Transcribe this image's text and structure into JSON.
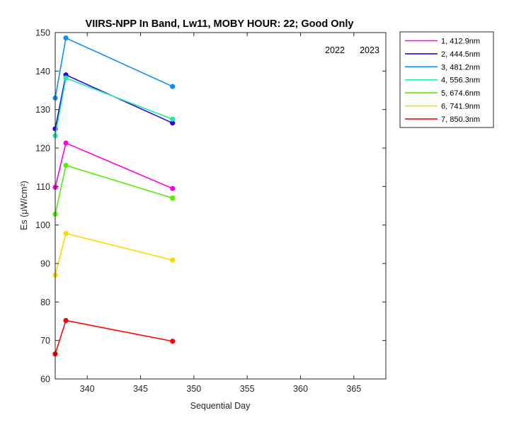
{
  "chart_data": {
    "type": "line",
    "title": "VIIRS-NPP In Band,  Lw11, MOBY HOUR: 22;  Good Only",
    "xlabel": "Sequential Day",
    "ylabel": "Es (μW/cm²)",
    "xlim": [
      337,
      368
    ],
    "ylim": [
      60,
      150
    ],
    "xticks": [
      340,
      345,
      350,
      355,
      360,
      365
    ],
    "yticks": [
      60,
      70,
      80,
      90,
      100,
      110,
      120,
      130,
      140,
      150
    ],
    "grid": false,
    "legend_placement": "outside-top-right",
    "annotations": [
      "2022",
      "2023"
    ],
    "x": [
      337,
      338,
      348
    ],
    "series": [
      {
        "name": "1, 412.9nm",
        "color": "#ff00e6",
        "values": [
          109.8,
          121.3,
          109.5
        ]
      },
      {
        "name": "2, 444.5nm",
        "color": "#3300dd",
        "values": [
          125.0,
          139.0,
          126.5
        ]
      },
      {
        "name": "3, 481.2nm",
        "color": "#0d8ff2",
        "values": [
          133.0,
          148.6,
          136.0
        ]
      },
      {
        "name": "4, 556.3nm",
        "color": "#1aeda4",
        "values": [
          123.2,
          138.2,
          127.5
        ]
      },
      {
        "name": "5, 674.6nm",
        "color": "#55ee00",
        "values": [
          102.8,
          115.5,
          107.0
        ]
      },
      {
        "name": "6, 741.9nm",
        "color": "#ffd700",
        "values": [
          87.0,
          97.8,
          90.9
        ]
      },
      {
        "name": "7, 850.3nm",
        "color": "#ff0000",
        "values": [
          66.5,
          75.2,
          69.8
        ]
      }
    ]
  }
}
